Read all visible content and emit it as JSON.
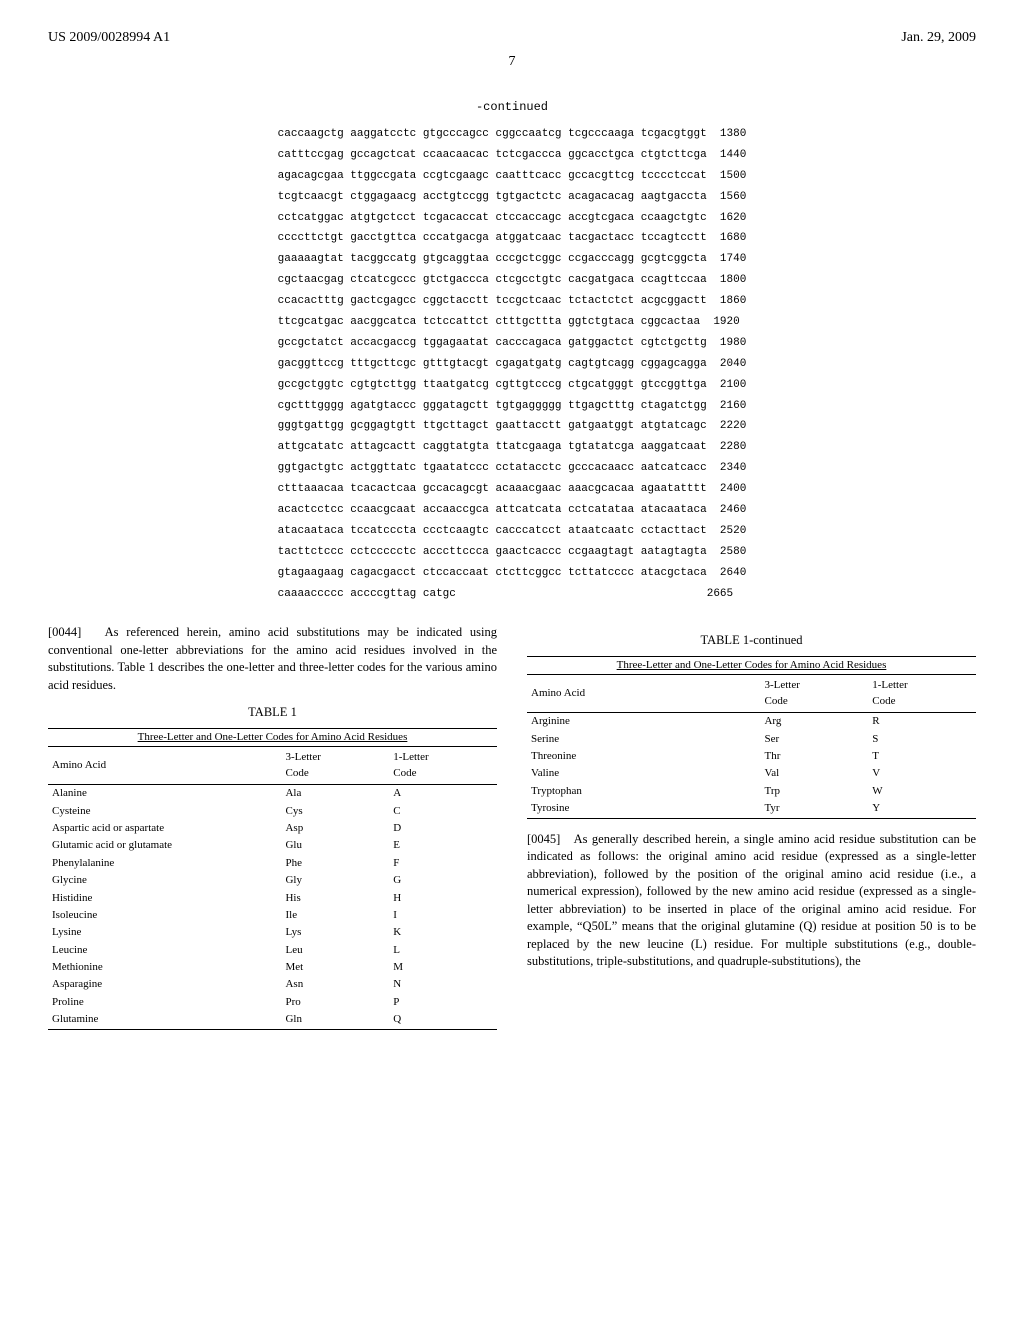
{
  "header": {
    "left": "US 2009/0028994 A1",
    "right": "Jan. 29, 2009"
  },
  "page_number": "7",
  "sequence": {
    "continued_label": "-continued",
    "rows": [
      {
        "seq": "caccaagctg aaggatcctc gtgcccagcc cggccaatcg tcgcccaaga tcgacgtggt",
        "pos": "1380"
      },
      {
        "seq": "catttccgag gccagctcat ccaacaacac tctcgaccca ggcacctgca ctgtcttcga",
        "pos": "1440"
      },
      {
        "seq": "agacagcgaa ttggccgata ccgtcgaagc caatttcacc gccacgttcg tcccctccat",
        "pos": "1500"
      },
      {
        "seq": "tcgtcaacgt ctggagaacg acctgtccgg tgtgactctc acagacacag aagtgaccta",
        "pos": "1560"
      },
      {
        "seq": "cctcatggac atgtgctcct tcgacaccat ctccaccagc accgtcgaca ccaagctgtc",
        "pos": "1620"
      },
      {
        "seq": "ccccttctgt gacctgttca cccatgacga atggatcaac tacgactacc tccagtcctt",
        "pos": "1680"
      },
      {
        "seq": "gaaaaagtat tacggccatg gtgcaggtaa cccgctcggc ccgacccagg gcgtcggcta",
        "pos": "1740"
      },
      {
        "seq": "cgctaacgag ctcatcgccc gtctgaccca ctcgcctgtc cacgatgaca ccagttccaa",
        "pos": "1800"
      },
      {
        "seq": "ccacactttg gactcgagcc cggctacctt tccgctcaac tctactctct acgcggactt",
        "pos": "1860"
      },
      {
        "seq": "ttcgcatgac aacggcatca tctccattct ctttgcttta ggtctgtaca cggcactaa",
        "pos": "1920"
      },
      {
        "seq": "gccgctatct accacgaccg tggagaatat cacccagaca gatggactct cgtctgcttg",
        "pos": "1980"
      },
      {
        "seq": "gacggttccg tttgcttcgc gtttgtacgt cgagatgatg cagtgtcagg cggagcagga",
        "pos": "2040"
      },
      {
        "seq": "gccgctggtc cgtgtcttgg ttaatgatcg cgttgtcccg ctgcatgggt gtccggttga",
        "pos": "2100"
      },
      {
        "seq": "cgctttgggg agatgtaccc gggatagctt tgtgaggggg ttgagctttg ctagatctgg",
        "pos": "2160"
      },
      {
        "seq": "gggtgattgg gcggagtgtt ttgcttagct gaattacctt gatgaatggt atgtatcagc",
        "pos": "2220"
      },
      {
        "seq": "attgcatatc attagcactt caggtatgta ttatcgaaga tgtatatcga aaggatcaat",
        "pos": "2280"
      },
      {
        "seq": "ggtgactgtc actggttatc tgaatatccc cctatacctc gcccacaacc aatcatcacc",
        "pos": "2340"
      },
      {
        "seq": "ctttaaacaa tcacactcaa gccacagcgt acaaacgaac aaacgcacaa agaatatttt",
        "pos": "2400"
      },
      {
        "seq": "acactcctcc ccaacgcaat accaaccgca attcatcata cctcatataa atacaataca",
        "pos": "2460"
      },
      {
        "seq": "atacaataca tccatcccta ccctcaagtc cacccatcct ataatcaatc cctacttact",
        "pos": "2520"
      },
      {
        "seq": "tacttctccc cctccccctc acccttccca gaactcaccc ccgaagtagt aatagtagta",
        "pos": "2580"
      },
      {
        "seq": "gtagaagaag cagacgacct ctccaccaat ctcttcggcc tcttatcccc atacgctaca",
        "pos": "2640"
      },
      {
        "seq": "caaaaccccc accccgttag catgc",
        "pos": "2665"
      }
    ]
  },
  "paragraphs": {
    "p44_num": "[0044]",
    "p44": "As referenced herein, amino acid substitutions may be indicated using conventional one-letter abbreviations for the amino acid residues involved in the substitutions. Table 1 describes the one-letter and three-letter codes for the various amino acid residues.",
    "p45_num": "[0045]",
    "p45": "As generally described herein, a single amino acid residue substitution can be indicated as follows: the original amino acid residue (expressed as a single-letter abbreviation), followed by the position of the original amino acid residue (i.e., a numerical expression), followed by the new amino acid residue (expressed as a single-letter abbreviation) to be inserted in place of the original amino acid residue. For example, “Q50L” means that the original glutamine (Q) residue at position 50 is to be replaced by the new leucine (L) residue. For multiple substitutions (e.g., double-substitutions, triple-substitutions, and quadruple-substitutions), the"
  },
  "table1": {
    "title": "TABLE 1",
    "continued_title": "TABLE 1-continued",
    "subtitle": "Three-Letter and One-Letter Codes for Amino Acid Residues",
    "col1": "Amino Acid",
    "col2": "3-Letter\nCode",
    "col3": "1-Letter\nCode",
    "rows_left": [
      {
        "aa": "Alanine",
        "three": "Ala",
        "one": "A"
      },
      {
        "aa": "Cysteine",
        "three": "Cys",
        "one": "C"
      },
      {
        "aa": "Aspartic acid or aspartate",
        "three": "Asp",
        "one": "D"
      },
      {
        "aa": "Glutamic acid or glutamate",
        "three": "Glu",
        "one": "E"
      },
      {
        "aa": "Phenylalanine",
        "three": "Phe",
        "one": "F"
      },
      {
        "aa": "Glycine",
        "three": "Gly",
        "one": "G"
      },
      {
        "aa": "Histidine",
        "three": "His",
        "one": "H"
      },
      {
        "aa": "Isoleucine",
        "three": "Ile",
        "one": "I"
      },
      {
        "aa": "Lysine",
        "three": "Lys",
        "one": "K"
      },
      {
        "aa": "Leucine",
        "three": "Leu",
        "one": "L"
      },
      {
        "aa": "Methionine",
        "three": "Met",
        "one": "M"
      },
      {
        "aa": "Asparagine",
        "three": "Asn",
        "one": "N"
      },
      {
        "aa": "Proline",
        "three": "Pro",
        "one": "P"
      },
      {
        "aa": "Glutamine",
        "three": "Gln",
        "one": "Q"
      }
    ],
    "rows_right": [
      {
        "aa": "Arginine",
        "three": "Arg",
        "one": "R"
      },
      {
        "aa": "Serine",
        "three": "Ser",
        "one": "S"
      },
      {
        "aa": "Threonine",
        "three": "Thr",
        "one": "T"
      },
      {
        "aa": "Valine",
        "three": "Val",
        "one": "V"
      },
      {
        "aa": "Tryptophan",
        "three": "Trp",
        "one": "W"
      },
      {
        "aa": "Tyrosine",
        "three": "Tyr",
        "one": "Y"
      }
    ]
  }
}
